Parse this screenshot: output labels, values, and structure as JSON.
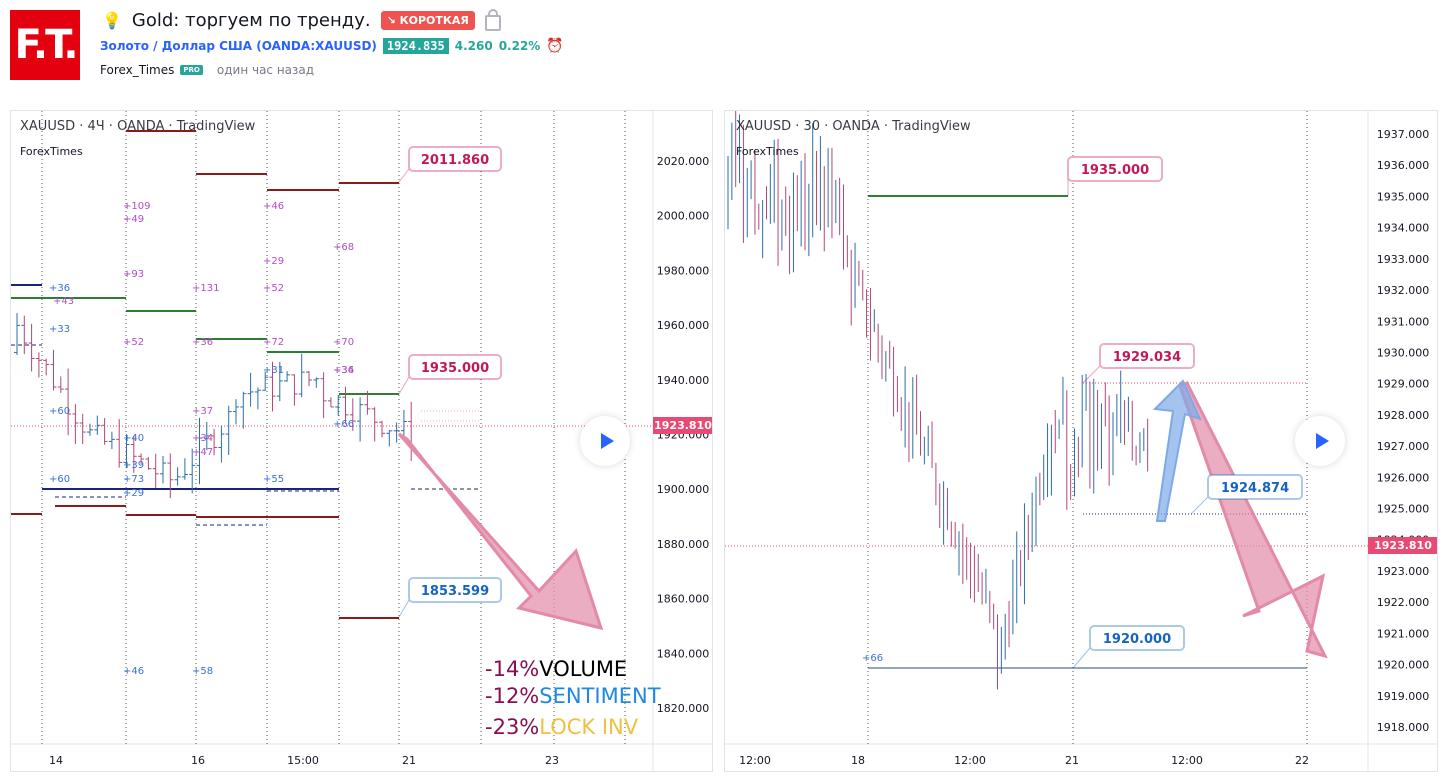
{
  "header": {
    "logo_text": "F.T.",
    "idea_title": "Gold: торгуем по тренду.",
    "direction_badge": "↘ КОРОТКАЯ",
    "symbol_link": "Золото / Доллар США (OANDA:XAUUSD)",
    "price": "1924.835",
    "change": "4.260",
    "change_pct": "0.22%",
    "author": "Forex_Times",
    "author_badge": "PRO",
    "published": "один час назад",
    "icons": [
      "bulb-icon",
      "lock-icon",
      "alarm-add-icon"
    ]
  },
  "chart_left": {
    "watermark": "XAUUSD · 4Ч · OANDA · TradingView",
    "sub_watermark": "ForexTimes",
    "price_axis": [
      "2020.000",
      "2000.000",
      "1980.000",
      "1960.000",
      "1940.000",
      "1920.000",
      "1900.000",
      "1880.000",
      "1860.000",
      "1840.000",
      "1820.000"
    ],
    "current_price": "1923.810",
    "time_axis": [
      "14",
      "16",
      "15:00",
      "21",
      "23"
    ],
    "callouts": [
      {
        "label": "2011.860",
        "color": "#c2185b"
      },
      {
        "label": "1935.000",
        "color": "#c2185b"
      },
      {
        "label": "1853.599",
        "color": "#1565c0"
      }
    ],
    "annotations_purple": [
      "+109",
      "+49",
      "+93",
      "+131",
      "+46",
      "+29",
      "+52",
      "+68",
      "+52",
      "+36",
      "+72",
      "+70",
      "+37",
      "+34",
      "+47",
      "+36",
      "+43",
      "+34"
    ],
    "annotations_blue": [
      "+36",
      "+33",
      "+60",
      "+40",
      "+39",
      "+73",
      "+60",
      "+29",
      "+31",
      "+55",
      "+66",
      "+46",
      "+58"
    ],
    "legend": [
      {
        "pct": "-14%",
        "label": "VOLUME"
      },
      {
        "pct": "-12%",
        "label": "SENTIMENT"
      },
      {
        "pct": "-23%",
        "label": "LOCK INV"
      }
    ]
  },
  "chart_right": {
    "watermark": "XAUUSD · 30 · OANDA · TradingView",
    "sub_watermark": "ForexTimes",
    "price_axis": [
      "1937.000",
      "1936.000",
      "1935.000",
      "1934.000",
      "1933.000",
      "1932.000",
      "1931.000",
      "1930.000",
      "1929.000",
      "1928.000",
      "1927.000",
      "1926.000",
      "1925.000",
      "1924.000",
      "1923.000",
      "1922.000",
      "1921.000",
      "1920.000",
      "1919.000",
      "1918.000"
    ],
    "current_price": "1923.810",
    "time_axis": [
      "12:00",
      "18",
      "12:00",
      "21",
      "12:00",
      "22"
    ],
    "callouts": [
      {
        "label": "1935.000",
        "color": "#c2185b"
      },
      {
        "label": "1929.034",
        "color": "#c2185b"
      },
      {
        "label": "1924.874",
        "color": "#1565c0"
      },
      {
        "label": "1920.000",
        "color": "#1565c0"
      }
    ],
    "annotation": "+66"
  },
  "colors": {
    "up": "#2a6fa8",
    "down": "#b0467a",
    "level_red": "#8b1a1a",
    "level_green": "#2e7d32",
    "level_blue": "#1a237e",
    "price_tag": "#e84a73",
    "arrow_pink": "#e38aa8",
    "arrow_blue": "#7ea9e8"
  }
}
